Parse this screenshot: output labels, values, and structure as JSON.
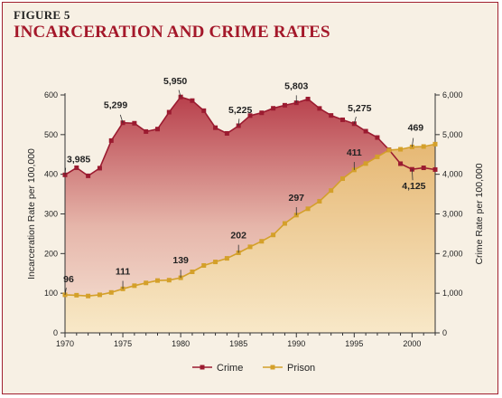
{
  "figure": {
    "label": "FIGURE 5",
    "title": "INCARCERATION AND CRIME RATES"
  },
  "chart_data": {
    "type": "line",
    "x": [
      1970,
      1971,
      1972,
      1973,
      1974,
      1975,
      1976,
      1977,
      1978,
      1979,
      1980,
      1981,
      1982,
      1983,
      1984,
      1985,
      1986,
      1987,
      1988,
      1989,
      1990,
      1991,
      1992,
      1993,
      1994,
      1995,
      1996,
      1997,
      1998,
      1999,
      2000,
      2001,
      2002
    ],
    "series": [
      {
        "name": "Crime",
        "axis": "right",
        "color": "#9b1b30",
        "values": [
          3985,
          4165,
          3961,
          4154,
          4850,
          5299,
          5287,
          5078,
          5140,
          5566,
          5950,
          5858,
          5604,
          5175,
          5031,
          5225,
          5480,
          5550,
          5664,
          5741,
          5803,
          5898,
          5661,
          5484,
          5374,
          5275,
          5087,
          4927,
          4620,
          4267,
          4125,
          4163,
          4119
        ],
        "labels": [
          {
            "x": 1970,
            "text": "3,985"
          },
          {
            "x": 1975,
            "text": "5,299"
          },
          {
            "x": 1980,
            "text": "5,950"
          },
          {
            "x": 1985,
            "text": "5,225"
          },
          {
            "x": 1990,
            "text": "5,803"
          },
          {
            "x": 1995,
            "text": "5,275"
          },
          {
            "x": 2000,
            "text": "4,125"
          }
        ]
      },
      {
        "name": "Prison",
        "axis": "left",
        "color": "#d4a02a",
        "values": [
          96,
          95,
          93,
          96,
          102,
          111,
          119,
          126,
          132,
          133,
          139,
          154,
          170,
          179,
          188,
          202,
          217,
          231,
          247,
          276,
          297,
          313,
          332,
          359,
          389,
          411,
          427,
          444,
          461,
          463,
          469,
          470,
          476
        ],
        "labels": [
          {
            "x": 1970,
            "text": "96"
          },
          {
            "x": 1975,
            "text": "111"
          },
          {
            "x": 1980,
            "text": "139"
          },
          {
            "x": 1985,
            "text": "202"
          },
          {
            "x": 1990,
            "text": "297"
          },
          {
            "x": 1995,
            "text": "411"
          },
          {
            "x": 2000,
            "text": "469"
          }
        ]
      }
    ],
    "y_left": {
      "label": "Incarceration Rate per 100,000",
      "range": [
        0,
        600
      ],
      "ticks": [
        0,
        100,
        200,
        300,
        400,
        500,
        600
      ],
      "tick_labels": [
        "0",
        "100",
        "200",
        "300",
        "400",
        "500",
        "600"
      ]
    },
    "y_right": {
      "label": "Crime Rate per 100,000",
      "range": [
        0,
        6000
      ],
      "ticks": [
        0,
        1000,
        2000,
        3000,
        4000,
        5000,
        6000
      ],
      "tick_labels": [
        "0",
        "1,000",
        "2,000",
        "3,000",
        "4,000",
        "5,000",
        "6,000"
      ]
    },
    "x_axis": {
      "range": [
        1970,
        2002
      ],
      "ticks": [
        1970,
        1975,
        1980,
        1985,
        1990,
        1995,
        2000
      ],
      "tick_labels": [
        "1970",
        "1975",
        "1980",
        "1985",
        "1990",
        "1995",
        "2000"
      ]
    },
    "legend": {
      "placement": "bottom-center"
    }
  }
}
